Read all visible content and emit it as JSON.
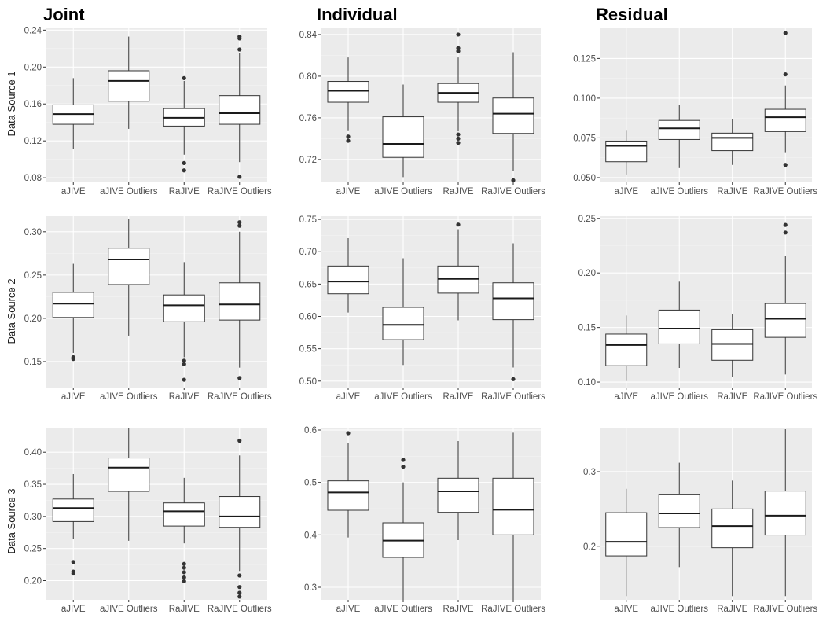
{
  "columns": [
    "Joint",
    "Individual",
    "Residual"
  ],
  "rows": [
    "Data Source 1",
    "Data Source 2",
    "Data Source 3"
  ],
  "chart_data": [
    {
      "type": "boxplot",
      "row": "Data Source 1",
      "column": "Joint",
      "categories": [
        "aJIVE",
        "aJIVE Outliers",
        "RaJIVE",
        "RaJIVE Outliers"
      ],
      "ylim": [
        0.075,
        0.242
      ],
      "yticks": [
        0.08,
        0.12,
        0.16,
        0.2,
        0.24
      ],
      "ytick_labels": [
        "0.08",
        "0.12",
        "0.16",
        "0.20",
        "0.24"
      ],
      "boxes": [
        {
          "low": 0.111,
          "q1": 0.138,
          "median": 0.149,
          "q3": 0.159,
          "high": 0.188,
          "outliers": []
        },
        {
          "low": 0.133,
          "q1": 0.163,
          "median": 0.185,
          "q3": 0.196,
          "high": 0.233,
          "outliers": []
        },
        {
          "low": 0.105,
          "q1": 0.136,
          "median": 0.145,
          "q3": 0.155,
          "high": 0.185,
          "outliers": [
            0.096,
            0.088,
            0.188
          ]
        },
        {
          "low": 0.097,
          "q1": 0.138,
          "median": 0.15,
          "q3": 0.169,
          "high": 0.215,
          "outliers": [
            0.081,
            0.219,
            0.231,
            0.233
          ]
        }
      ]
    },
    {
      "type": "boxplot",
      "row": "Data Source 1",
      "column": "Individual",
      "categories": [
        "aJIVE",
        "aJIVE Outliers",
        "RaJIVE",
        "RaJIVE Outliers"
      ],
      "ylim": [
        0.698,
        0.846
      ],
      "yticks": [
        0.72,
        0.76,
        0.8,
        0.84
      ],
      "ytick_labels": [
        "0.72",
        "0.76",
        "0.80",
        "0.84"
      ],
      "boxes": [
        {
          "low": 0.748,
          "q1": 0.775,
          "median": 0.786,
          "q3": 0.795,
          "high": 0.818,
          "outliers": [
            0.742,
            0.738
          ]
        },
        {
          "low": 0.703,
          "q1": 0.722,
          "median": 0.735,
          "q3": 0.761,
          "high": 0.792,
          "outliers": []
        },
        {
          "low": 0.747,
          "q1": 0.775,
          "median": 0.784,
          "q3": 0.793,
          "high": 0.818,
          "outliers": [
            0.744,
            0.74,
            0.736,
            0.824,
            0.827,
            0.84
          ]
        },
        {
          "low": 0.709,
          "q1": 0.745,
          "median": 0.764,
          "q3": 0.779,
          "high": 0.823,
          "outliers": [
            0.7
          ]
        }
      ]
    },
    {
      "type": "boxplot",
      "row": "Data Source 1",
      "column": "Residual",
      "categories": [
        "aJIVE",
        "aJIVE Outliers",
        "RaJIVE",
        "RaJIVE Outliers"
      ],
      "ylim": [
        0.047,
        0.144
      ],
      "yticks": [
        0.05,
        0.075,
        0.1,
        0.125
      ],
      "ytick_labels": [
        "0.050",
        "0.075",
        "0.100",
        "0.125"
      ],
      "boxes": [
        {
          "low": 0.052,
          "q1": 0.06,
          "median": 0.07,
          "q3": 0.073,
          "high": 0.08,
          "outliers": []
        },
        {
          "low": 0.056,
          "q1": 0.074,
          "median": 0.081,
          "q3": 0.086,
          "high": 0.096,
          "outliers": []
        },
        {
          "low": 0.058,
          "q1": 0.067,
          "median": 0.075,
          "q3": 0.078,
          "high": 0.087,
          "outliers": []
        },
        {
          "low": 0.066,
          "q1": 0.079,
          "median": 0.088,
          "q3": 0.093,
          "high": 0.108,
          "outliers": [
            0.058,
            0.115,
            0.141
          ]
        }
      ]
    },
    {
      "type": "boxplot",
      "row": "Data Source 2",
      "column": "Joint",
      "categories": [
        "aJIVE",
        "aJIVE Outliers",
        "RaJIVE",
        "RaJIVE Outliers"
      ],
      "ylim": [
        0.12,
        0.318
      ],
      "yticks": [
        0.15,
        0.2,
        0.25,
        0.3
      ],
      "ytick_labels": [
        "0.15",
        "0.20",
        "0.25",
        "0.30"
      ],
      "boxes": [
        {
          "low": 0.16,
          "q1": 0.201,
          "median": 0.217,
          "q3": 0.23,
          "high": 0.263,
          "outliers": [
            0.155,
            0.153
          ]
        },
        {
          "low": 0.18,
          "q1": 0.239,
          "median": 0.268,
          "q3": 0.281,
          "high": 0.315,
          "outliers": []
        },
        {
          "low": 0.155,
          "q1": 0.196,
          "median": 0.215,
          "q3": 0.227,
          "high": 0.265,
          "outliers": [
            0.151,
            0.147,
            0.129
          ]
        },
        {
          "low": 0.143,
          "q1": 0.198,
          "median": 0.216,
          "q3": 0.241,
          "high": 0.3,
          "outliers": [
            0.131,
            0.307,
            0.311
          ]
        }
      ]
    },
    {
      "type": "boxplot",
      "row": "Data Source 2",
      "column": "Individual",
      "categories": [
        "aJIVE",
        "aJIVE Outliers",
        "RaJIVE",
        "RaJIVE Outliers"
      ],
      "ylim": [
        0.49,
        0.755
      ],
      "yticks": [
        0.5,
        0.55,
        0.6,
        0.65,
        0.7,
        0.75
      ],
      "ytick_labels": [
        "0.50",
        "0.55",
        "0.60",
        "0.65",
        "0.70",
        "0.75"
      ],
      "boxes": [
        {
          "low": 0.606,
          "q1": 0.635,
          "median": 0.654,
          "q3": 0.678,
          "high": 0.721,
          "outliers": []
        },
        {
          "low": 0.525,
          "q1": 0.564,
          "median": 0.587,
          "q3": 0.614,
          "high": 0.69,
          "outliers": []
        },
        {
          "low": 0.594,
          "q1": 0.636,
          "median": 0.658,
          "q3": 0.678,
          "high": 0.735,
          "outliers": [
            0.742
          ]
        },
        {
          "low": 0.521,
          "q1": 0.595,
          "median": 0.628,
          "q3": 0.652,
          "high": 0.713,
          "outliers": [
            0.503
          ]
        }
      ]
    },
    {
      "type": "boxplot",
      "row": "Data Source 2",
      "column": "Residual",
      "categories": [
        "aJIVE",
        "aJIVE Outliers",
        "RaJIVE",
        "RaJIVE Outliers"
      ],
      "ylim": [
        0.095,
        0.252
      ],
      "yticks": [
        0.1,
        0.15,
        0.2,
        0.25
      ],
      "ytick_labels": [
        "0.10",
        "0.15",
        "0.20",
        "0.25"
      ],
      "boxes": [
        {
          "low": 0.101,
          "q1": 0.115,
          "median": 0.134,
          "q3": 0.144,
          "high": 0.161,
          "outliers": []
        },
        {
          "low": 0.113,
          "q1": 0.135,
          "median": 0.149,
          "q3": 0.166,
          "high": 0.192,
          "outliers": []
        },
        {
          "low": 0.105,
          "q1": 0.12,
          "median": 0.135,
          "q3": 0.148,
          "high": 0.162,
          "outliers": []
        },
        {
          "low": 0.107,
          "q1": 0.141,
          "median": 0.158,
          "q3": 0.172,
          "high": 0.216,
          "outliers": [
            0.237,
            0.244
          ]
        }
      ]
    },
    {
      "type": "boxplot",
      "row": "Data Source 3",
      "column": "Joint",
      "categories": [
        "aJIVE",
        "aJIVE Outliers",
        "RaJIVE",
        "RaJIVE Outliers"
      ],
      "ylim": [
        0.17,
        0.437
      ],
      "yticks": [
        0.2,
        0.25,
        0.3,
        0.35,
        0.4
      ],
      "ytick_labels": [
        "0.20",
        "0.25",
        "0.30",
        "0.35",
        "0.40"
      ],
      "boxes": [
        {
          "low": 0.265,
          "q1": 0.292,
          "median": 0.313,
          "q3": 0.327,
          "high": 0.366,
          "outliers": [
            0.229,
            0.214,
            0.211
          ]
        },
        {
          "low": 0.262,
          "q1": 0.339,
          "median": 0.376,
          "q3": 0.391,
          "high": 0.437,
          "outliers": []
        },
        {
          "low": 0.258,
          "q1": 0.285,
          "median": 0.308,
          "q3": 0.321,
          "high": 0.36,
          "outliers": [
            0.226,
            0.22,
            0.213,
            0.205,
            0.199
          ]
        },
        {
          "low": 0.215,
          "q1": 0.283,
          "median": 0.3,
          "q3": 0.331,
          "high": 0.395,
          "outliers": [
            0.208,
            0.19,
            0.181,
            0.175,
            0.418
          ]
        }
      ]
    },
    {
      "type": "boxplot",
      "row": "Data Source 3",
      "column": "Individual",
      "categories": [
        "aJIVE",
        "aJIVE Outliers",
        "RaJIVE",
        "RaJIVE Outliers"
      ],
      "ylim": [
        0.276,
        0.603
      ],
      "yticks": [
        0.3,
        0.4,
        0.5,
        0.6
      ],
      "ytick_labels": [
        "0.3",
        "0.4",
        "0.5",
        "0.6"
      ],
      "boxes": [
        {
          "low": 0.395,
          "q1": 0.447,
          "median": 0.481,
          "q3": 0.503,
          "high": 0.575,
          "outliers": [
            0.594
          ]
        },
        {
          "low": 0.276,
          "q1": 0.357,
          "median": 0.389,
          "q3": 0.423,
          "high": 0.5,
          "outliers": [
            0.53,
            0.543
          ]
        },
        {
          "low": 0.39,
          "q1": 0.443,
          "median": 0.483,
          "q3": 0.508,
          "high": 0.579,
          "outliers": []
        },
        {
          "low": 0.276,
          "q1": 0.4,
          "median": 0.448,
          "q3": 0.508,
          "high": 0.595,
          "outliers": []
        }
      ]
    },
    {
      "type": "boxplot",
      "row": "Data Source 3",
      "column": "Residual",
      "categories": [
        "aJIVE",
        "aJIVE Outliers",
        "RaJIVE",
        "RaJIVE Outliers"
      ],
      "ylim": [
        0.128,
        0.358
      ],
      "yticks": [
        0.2,
        0.3
      ],
      "ytick_labels": [
        "0.2",
        "0.3"
      ],
      "boxes": [
        {
          "low": 0.133,
          "q1": 0.187,
          "median": 0.206,
          "q3": 0.245,
          "high": 0.277,
          "outliers": []
        },
        {
          "low": 0.172,
          "q1": 0.225,
          "median": 0.244,
          "q3": 0.269,
          "high": 0.312,
          "outliers": []
        },
        {
          "low": 0.133,
          "q1": 0.198,
          "median": 0.227,
          "q3": 0.25,
          "high": 0.288,
          "outliers": []
        },
        {
          "low": 0.133,
          "q1": 0.215,
          "median": 0.241,
          "q3": 0.274,
          "high": 0.357,
          "outliers": []
        }
      ]
    }
  ]
}
